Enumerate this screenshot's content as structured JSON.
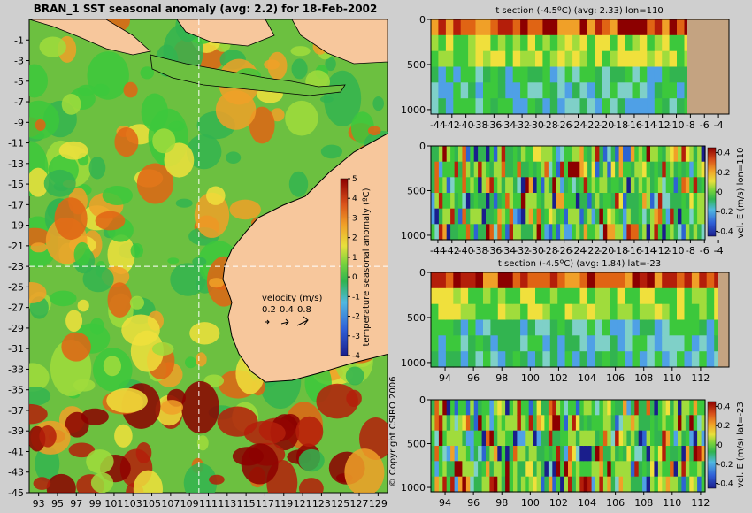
{
  "colors": {
    "background": "#cfcfcf",
    "land": "#f7c79c",
    "seabed": "#c4a381",
    "scale": [
      "#1a1e8c",
      "#2d64d2",
      "#4fa0e6",
      "#7fd0c8",
      "#32b450",
      "#3cc83c",
      "#a0dc3c",
      "#f0e03c",
      "#f0a028",
      "#e06414",
      "#b41e0a",
      "#8c0000"
    ]
  },
  "chart_data": [
    {
      "id": "map",
      "type": "heatmap",
      "title": "BRAN_1 SST seasonal anomaly (avg: 2.2) for 18-Feb-2002",
      "x_ticks": [
        "93",
        "95",
        "97",
        "99",
        "101",
        "103",
        "105",
        "107",
        "109",
        "111",
        "113",
        "115",
        "117",
        "119",
        "121",
        "123",
        "125",
        "127",
        "129"
      ],
      "y_ticks": [
        "-1",
        "-3",
        "-5",
        "-7",
        "-9",
        "-11",
        "-13",
        "-15",
        "-17",
        "-19",
        "-21",
        "-23",
        "-25",
        "-27",
        "-29",
        "-31",
        "-33",
        "-35",
        "-37",
        "-39",
        "-41",
        "-43",
        "-45"
      ],
      "xlim": [
        92,
        130
      ],
      "ylim": [
        -45,
        1
      ],
      "crosshair": {
        "lon": 110,
        "lat": -23
      },
      "velocity_key": {
        "title": "velocity (m/s)",
        "values": [
          "0.2",
          "0.4",
          "0.8"
        ]
      },
      "colorbar": {
        "label": "temperature seasonal anomaly (ºC)",
        "ticks": [
          "5",
          "4",
          "3",
          "2",
          "1",
          "0",
          "-1",
          "-2",
          "-3",
          "-4"
        ],
        "range": [
          -4,
          5
        ]
      },
      "copyright": "© Copyright CSIRO 2006"
    },
    {
      "id": "t-section-lon",
      "type": "heatmap",
      "title": "t section (-4.5ºC) (avg: 2.33) lon=110",
      "x_ticks": [
        "-44",
        "-42",
        "-40",
        "-38",
        "-36",
        "-34",
        "-32",
        "-30",
        "-28",
        "-26",
        "-24",
        "-22",
        "-20",
        "-18",
        "-16",
        "-14",
        "-12",
        "-10",
        "-8",
        "-6",
        "-4"
      ],
      "y_ticks": [
        "0",
        "500",
        "1000"
      ],
      "xlim": [
        -45,
        -2.5
      ],
      "ylim": [
        0,
        1050
      ]
    },
    {
      "id": "vel-section-lon",
      "type": "heatmap",
      "title": "",
      "x_ticks": [
        "-44",
        "-42",
        "-40",
        "-38",
        "-36",
        "-34",
        "-32",
        "-30",
        "-28",
        "-26",
        "-24",
        "-22",
        "-20",
        "-18",
        "-16",
        "-14",
        "-12",
        "-10",
        "-8",
        "-6",
        "-4"
      ],
      "y_ticks": [
        "0",
        "500",
        "1000"
      ],
      "xlim": [
        -45,
        -2.5
      ],
      "ylim": [
        0,
        1050
      ],
      "colorbar": {
        "label": "vel. E (m/s) lon=110",
        "ticks": [
          "0.4",
          "0.2",
          "0",
          "-0.2",
          "-0.4"
        ],
        "range": [
          -0.45,
          0.45
        ]
      }
    },
    {
      "id": "t-section-lat",
      "type": "heatmap",
      "title": "t section (-4.5ºC) (avg: 1.84) lat=-23",
      "x_ticks": [
        "94",
        "96",
        "98",
        "100",
        "102",
        "104",
        "106",
        "108",
        "110",
        "112"
      ],
      "y_ticks": [
        "0",
        "500",
        "1000"
      ],
      "xlim": [
        93,
        114
      ],
      "ylim": [
        0,
        1050
      ]
    },
    {
      "id": "vel-section-lat",
      "type": "heatmap",
      "title": "",
      "x_ticks": [
        "94",
        "96",
        "98",
        "100",
        "102",
        "104",
        "106",
        "108",
        "110",
        "112"
      ],
      "y_ticks": [
        "0",
        "500",
        "1000"
      ],
      "xlim": [
        93,
        114
      ],
      "ylim": [
        0,
        1050
      ],
      "colorbar": {
        "label": "vel. E (m/s) lat=-23",
        "ticks": [
          "0.4",
          "0.2",
          "0",
          "-0.2",
          "-0.4"
        ],
        "range": [
          -0.45,
          0.45
        ]
      }
    }
  ]
}
